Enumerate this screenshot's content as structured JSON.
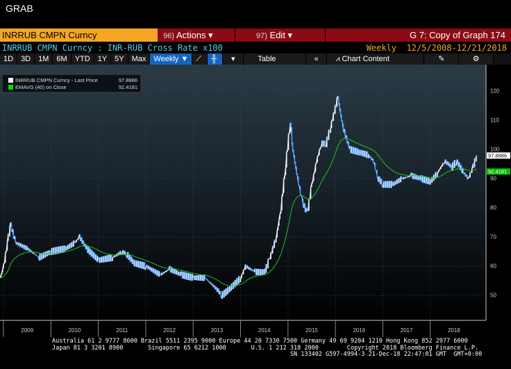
{
  "app_title": "GRAB",
  "header": {
    "ticker": "INRRUB CMPN Curncy",
    "actions": {
      "num": "96)",
      "label": "Actions ▾"
    },
    "edit": {
      "num": "97)",
      "label": "Edit ▾"
    },
    "graph_title": "G 7: Copy of Graph 174"
  },
  "subheader": {
    "description": "INRRUB CMPN Curncy : INR-RUB Cross Rate x100",
    "frequency": "Weekly",
    "date_range": "12/5/2008-12/21/2018"
  },
  "toolbar": {
    "periods": [
      "1D",
      "3D",
      "1M",
      "6M",
      "YTD",
      "1Y",
      "5Y",
      "Max"
    ],
    "frequency": "Weekly ▼",
    "table": "Table",
    "collapse": "«",
    "chart_content": "Chart Content",
    "dropdown": "▾"
  },
  "legend": [
    {
      "label": "INRRUB CMPN Curncy - Last Price",
      "value": "97.8886",
      "color": "#ffffff"
    },
    {
      "label": "EMAVG (40) on Close",
      "value": "92.4181",
      "color": "#00e000"
    }
  ],
  "colors": {
    "price": "#ffffff",
    "price_down": "#2f8fff",
    "ema": "#22c322",
    "accent": "#f5a623",
    "header_bg": "#8b0a14"
  },
  "chart_data": {
    "type": "line",
    "title": "INR-RUB Cross Rate x100",
    "ylim": [
      45,
      125
    ],
    "yticks": [
      50,
      60,
      70,
      80,
      90,
      100,
      110,
      120
    ],
    "xlim": [
      2008.93,
      2019.0
    ],
    "xticks": [
      "2009",
      "2010",
      "2011",
      "2012",
      "2013",
      "2014",
      "2015",
      "2016",
      "2017",
      "2018"
    ],
    "series": [
      {
        "name": "INRRUB CMPN Curncy - Last Price",
        "x": [
          2008.93,
          2009.0,
          2009.1,
          2009.15,
          2009.25,
          2009.5,
          2009.75,
          2010.0,
          2010.3,
          2010.5,
          2010.6,
          2010.75,
          2011.0,
          2011.3,
          2011.5,
          2011.6,
          2011.75,
          2012.0,
          2012.3,
          2012.5,
          2012.75,
          2013.0,
          2013.25,
          2013.5,
          2013.6,
          2013.75,
          2014.0,
          2014.1,
          2014.3,
          2014.5,
          2014.6,
          2014.75,
          2014.85,
          2014.95,
          2015.05,
          2015.1,
          2015.2,
          2015.3,
          2015.4,
          2015.5,
          2015.6,
          2015.7,
          2015.8,
          2015.9,
          2016.05,
          2016.15,
          2016.3,
          2016.5,
          2016.7,
          2016.8,
          2016.9,
          2017.0,
          2017.2,
          2017.4,
          2017.6,
          2017.8,
          2018.0,
          2018.15,
          2018.3,
          2018.45,
          2018.55,
          2018.7,
          2018.8,
          2018.9,
          2018.97
        ],
        "y": [
          56,
          60,
          70,
          74,
          68,
          66,
          63,
          65,
          66,
          68,
          70,
          66,
          62,
          63,
          65,
          64,
          61,
          60,
          57,
          59,
          57,
          56,
          56,
          52,
          50,
          52,
          56,
          60,
          58,
          58,
          62,
          70,
          80,
          95,
          110,
          100,
          90,
          82,
          78,
          88,
          96,
          102,
          102,
          108,
          118,
          108,
          100,
          99,
          98,
          96,
          90,
          88,
          88,
          90,
          91,
          90,
          89,
          92,
          96,
          94,
          96,
          92,
          90,
          94,
          97.89
        ]
      },
      {
        "name": "EMAVG (40) on Close",
        "period": 40,
        "last": 92.4181
      }
    ]
  },
  "footer": {
    "line1": "Australia 61 2 9777 8600 Brazil 5511 2395 9000 Europe 44 20 7330 7500 Germany 49 69 9204 1210 Hong Kong 852 2977 6000",
    "line2": "Japan 81 3 3201 8900       Singapore 65 6212 1000       U.S. 1 212 318 2000        Copyright 2018 Bloomberg Finance L.P.",
    "line3": "                                                                   SN 133402 G597-4994-3 21-Dec-18 22:47:01 GMT  GMT+0:00"
  }
}
